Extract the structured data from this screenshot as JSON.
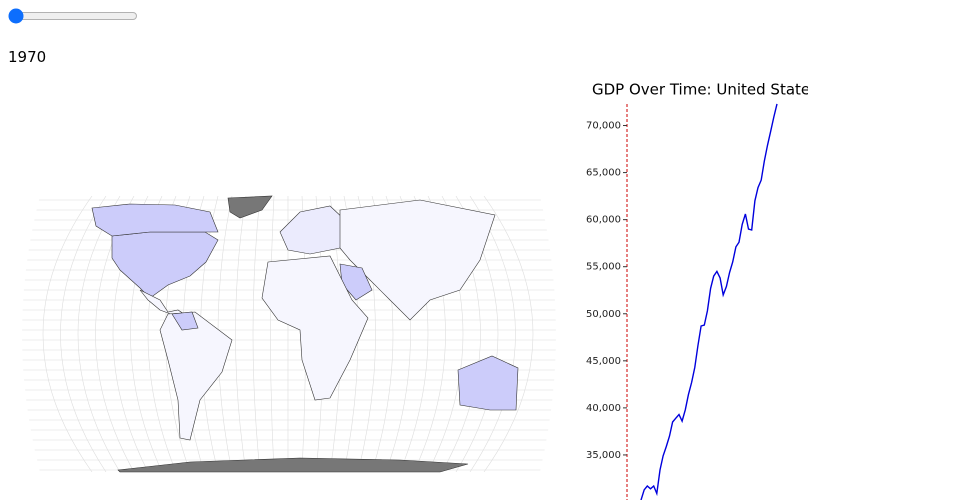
{
  "slider": {
    "label": "1970"
  },
  "chart_data": {
    "type": "line",
    "title": "GDP Over Time: United States",
    "color": "#0000dd",
    "values": [
      30200,
      31300,
      31700,
      31400,
      31700,
      30900,
      33400,
      34900,
      35900,
      37000,
      38500,
      38900,
      39300,
      38600,
      39800,
      41400,
      42700,
      44300,
      46600,
      48700,
      48800,
      50300,
      52700,
      54000,
      54500,
      53800,
      52000,
      52900,
      54400,
      55500,
      57100,
      57600,
      59500,
      60600,
      59000,
      58900,
      62000,
      63400,
      64200,
      66200,
      67900,
      69400,
      70900,
      72300
    ],
    "ylim": [
      30000,
      72500
    ],
    "yticks": [
      {
        "value": 35000,
        "label": "35,000"
      },
      {
        "value": 40000,
        "label": "40,000"
      },
      {
        "value": 45000,
        "label": "45,000"
      },
      {
        "value": 50000,
        "label": "50,000"
      },
      {
        "value": 55000,
        "label": "55,000"
      },
      {
        "value": 60000,
        "label": "60,000"
      },
      {
        "value": 65000,
        "label": "65,000"
      },
      {
        "value": 70000,
        "label": "70,000"
      }
    ]
  }
}
